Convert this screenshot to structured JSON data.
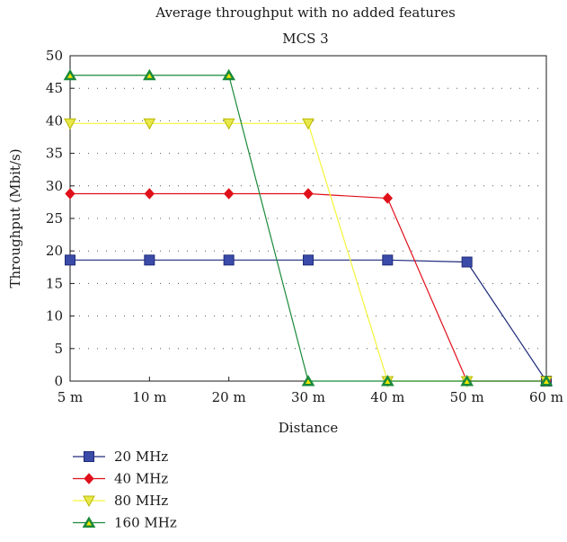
{
  "chart_data": {
    "type": "line",
    "title": "Average throughput with no added features",
    "subtitle": "MCS 3",
    "xlabel": "Distance",
    "ylabel": "Throughput (Mbit/s)",
    "categories": [
      "5 m",
      "10 m",
      "20 m",
      "30 m",
      "40 m",
      "50 m",
      "60 m"
    ],
    "ylim": [
      0,
      50
    ],
    "yticks": [
      0,
      5,
      10,
      15,
      20,
      25,
      30,
      35,
      40,
      45,
      50
    ],
    "grid": "dotted-horizontal",
    "legend_position": "bottom-left",
    "series": [
      {
        "name": "20 MHz",
        "values": [
          18.6,
          18.6,
          18.6,
          18.6,
          18.6,
          18.3,
          0
        ],
        "color": "#1f2a7a",
        "marker": "square",
        "marker_color": "#3b4ba8"
      },
      {
        "name": "40 MHz",
        "values": [
          28.8,
          28.8,
          28.8,
          28.8,
          28.1,
          0,
          0
        ],
        "color": "#e0101a",
        "marker": "diamond",
        "marker_color": "#e0101a"
      },
      {
        "name": "80 MHz",
        "values": [
          39.6,
          39.6,
          39.6,
          39.6,
          0,
          0,
          0
        ],
        "color": "#f5f53a",
        "marker": "triangle-down",
        "marker_color": "#e8e84a"
      },
      {
        "name": "160 MHz",
        "values": [
          47.0,
          47.0,
          47.0,
          0,
          0,
          0,
          0
        ],
        "color": "#1a8a3a",
        "marker": "triangle-up",
        "marker_color": "#1a8a3a"
      }
    ]
  }
}
